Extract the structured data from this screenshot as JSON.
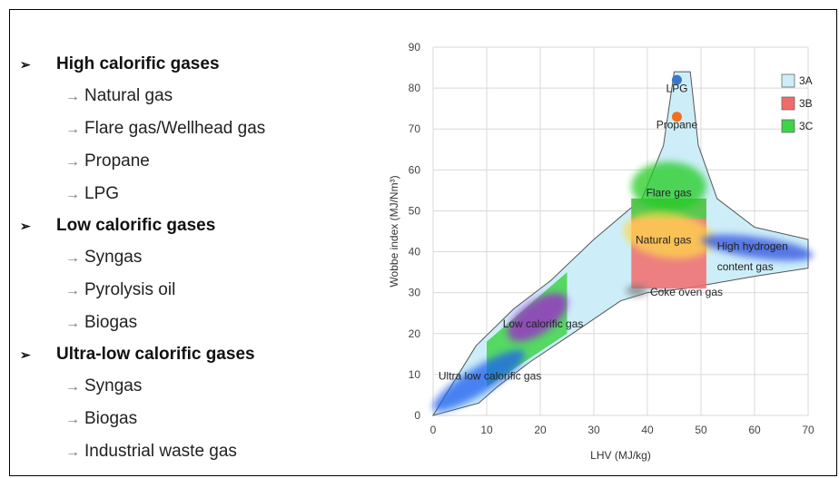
{
  "groups": [
    {
      "title": "High calorific gases",
      "items": [
        "Natural gas",
        "Flare gas/Wellhead gas",
        "Propane",
        "LPG"
      ]
    },
    {
      "title": "Low calorific gases",
      "items": [
        "Syngas",
        "Pyrolysis oil",
        "Biogas"
      ]
    },
    {
      "title": "Ultra-low calorific gases",
      "items": [
        "Syngas",
        "Biogas",
        "Industrial waste gas"
      ]
    }
  ],
  "chart_data": {
    "type": "scatter",
    "xlabel": "LHV (MJ/kg)",
    "ylabel": "Wobbe index (MJ/Nm³)",
    "xlim": [
      0,
      70
    ],
    "ylim": [
      0,
      90
    ],
    "xticks": [
      0,
      10,
      20,
      30,
      40,
      50,
      60,
      70
    ],
    "yticks": [
      0,
      10,
      20,
      30,
      40,
      50,
      60,
      70,
      80,
      90
    ],
    "grid": true,
    "legend": {
      "placement": "top-right",
      "entries": [
        {
          "name": "3A",
          "color": "#cdeef8"
        },
        {
          "name": "3B",
          "color": "#f26b6b"
        },
        {
          "name": "3C",
          "color": "#3fd34a"
        }
      ]
    },
    "envelope_3A": [
      [
        8.5,
        3
      ],
      [
        12,
        7
      ],
      [
        18,
        13
      ],
      [
        26,
        20
      ],
      [
        35,
        28
      ],
      [
        40,
        30
      ],
      [
        47,
        31
      ],
      [
        60,
        34
      ],
      [
        70,
        36
      ],
      [
        70,
        43
      ],
      [
        60,
        46
      ],
      [
        53,
        53
      ],
      [
        49.5,
        66
      ],
      [
        48,
        84
      ],
      [
        45,
        84
      ],
      [
        43,
        66
      ],
      [
        39,
        53
      ],
      [
        30,
        43
      ],
      [
        22,
        33
      ],
      [
        15,
        26
      ],
      [
        8,
        17
      ],
      [
        0,
        0
      ]
    ],
    "region_3B": {
      "x": [
        37,
        51
      ],
      "y": [
        31,
        53
      ]
    },
    "region_3C": {
      "x": [
        37,
        51
      ],
      "y": [
        48,
        53
      ]
    },
    "region_3C_low": [
      [
        10,
        7
      ],
      [
        25,
        20
      ],
      [
        25,
        35
      ],
      [
        10,
        18
      ]
    ],
    "points": [
      {
        "name": "LPG",
        "x": 45.5,
        "y": 82,
        "color": "#3a78c8"
      },
      {
        "name": "Propane",
        "x": 45.5,
        "y": 73,
        "color": "#f07020"
      }
    ],
    "zones": [
      {
        "name": "Flare gas",
        "cx": 44,
        "cy": 56,
        "rx": 7,
        "ry": 6,
        "rot": 0,
        "color": "#22cc22"
      },
      {
        "name": "Natural gas",
        "cx": 44,
        "cy": 44,
        "rx": 8.5,
        "ry": 5.5,
        "rot": 8,
        "color": "#ffd84a"
      },
      {
        "name": "High hydrogen content gas",
        "cx": 60.5,
        "cy": 41,
        "rx": 10.5,
        "ry": 2.6,
        "rot": 8,
        "color": "#2f4fe0"
      },
      {
        "name": "Coke oven gas",
        "cx": 38,
        "cy": 30.5,
        "rx": 2,
        "ry": 1.3,
        "rot": 0,
        "color": "#777777"
      },
      {
        "name": "Low calorific gas",
        "cx": 19.5,
        "cy": 24,
        "rx": 6.5,
        "ry": 4,
        "rot": -35,
        "color": "#a020d0"
      },
      {
        "name": "Ultra low calorific gas",
        "cx": 8.5,
        "cy": 8.5,
        "rx": 10,
        "ry": 3.2,
        "rot": -32,
        "color": "#1e5ff0"
      }
    ],
    "labels": [
      {
        "text": "LPG",
        "x": 45.5,
        "y": 79,
        "anchor": "middle"
      },
      {
        "text": "Propane",
        "x": 45.5,
        "y": 70.2,
        "anchor": "middle"
      },
      {
        "text": "Flare gas",
        "x": 44,
        "y": 53.5,
        "anchor": "middle"
      },
      {
        "text": "Natural gas",
        "x": 43,
        "y": 42,
        "anchor": "middle"
      },
      {
        "text": "High hydrogen",
        "x": 53,
        "y": 40.5,
        "anchor": "start"
      },
      {
        "text": "content gas",
        "x": 53,
        "y": 35.5,
        "anchor": "start"
      },
      {
        "text": "Coke oven gas",
        "x": 40.5,
        "y": 29.3,
        "anchor": "start"
      },
      {
        "text": "Low calorific gas",
        "x": 13,
        "y": 21.5,
        "anchor": "start"
      },
      {
        "text": "Ultra low calorific gas",
        "x": 1,
        "y": 8.8,
        "anchor": "start"
      }
    ]
  }
}
